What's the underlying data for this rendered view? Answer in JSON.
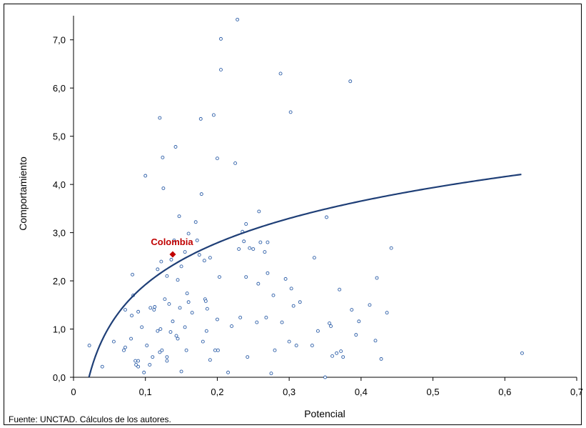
{
  "chart_data": {
    "type": "scatter",
    "title": "",
    "top_caption": "",
    "xlabel": "Potencial",
    "ylabel": "Comportamiento",
    "xlim": [
      0,
      0.7
    ],
    "ylim": [
      0,
      7.5
    ],
    "x_ticks": [
      "0",
      "0,1",
      "0,2",
      "0,3",
      "0,4",
      "0,5",
      "0,6",
      "0,7"
    ],
    "y_ticks": [
      "0,0",
      "1,0",
      "2,0",
      "3,0",
      "4,0",
      "5,0",
      "6,0",
      "7,0"
    ],
    "grid": false,
    "source": "Fuente: UNCTAD. Cálculos de los autores.",
    "highlight": {
      "label": "Colombia",
      "x": 0.138,
      "y": 2.55,
      "color": "#c00000"
    },
    "trend": {
      "type": "logarithmic",
      "a": 4.8,
      "b": 1.25,
      "x_range": [
        0.0215,
        0.623
      ],
      "color": "#1f3f77"
    },
    "series": [
      {
        "marker_color": "#2e5fa8",
        "points": [
          [
            0.022,
            0.66
          ],
          [
            0.04,
            0.22
          ],
          [
            0.056,
            0.74
          ],
          [
            0.07,
            0.56
          ],
          [
            0.072,
            0.62
          ],
          [
            0.072,
            1.4
          ],
          [
            0.08,
            0.8
          ],
          [
            0.081,
            1.28
          ],
          [
            0.082,
            2.13
          ],
          [
            0.083,
            1.7
          ],
          [
            0.086,
            0.34
          ],
          [
            0.087,
            0.26
          ],
          [
            0.09,
            0.22
          ],
          [
            0.09,
            0.34
          ],
          [
            0.09,
            1.36
          ],
          [
            0.095,
            1.04
          ],
          [
            0.098,
            0.1
          ],
          [
            0.1,
            4.18
          ],
          [
            0.102,
            0.66
          ],
          [
            0.106,
            0.26
          ],
          [
            0.107,
            1.44
          ],
          [
            0.11,
            0.42
          ],
          [
            0.112,
            1.4
          ],
          [
            0.113,
            1.46
          ],
          [
            0.117,
            0.96
          ],
          [
            0.117,
            2.24
          ],
          [
            0.12,
            5.38
          ],
          [
            0.12,
            0.52
          ],
          [
            0.121,
            1.0
          ],
          [
            0.122,
            2.4
          ],
          [
            0.123,
            0.56
          ],
          [
            0.124,
            4.56
          ],
          [
            0.125,
            3.92
          ],
          [
            0.127,
            1.62
          ],
          [
            0.13,
            0.42
          ],
          [
            0.13,
            0.34
          ],
          [
            0.13,
            2.1
          ],
          [
            0.133,
            1.52
          ],
          [
            0.135,
            0.94
          ],
          [
            0.136,
            2.44
          ],
          [
            0.138,
            1.16
          ],
          [
            0.14,
            2.84
          ],
          [
            0.142,
            4.78
          ],
          [
            0.143,
            0.86
          ],
          [
            0.145,
            2.02
          ],
          [
            0.145,
            0.8
          ],
          [
            0.147,
            3.34
          ],
          [
            0.148,
            1.44
          ],
          [
            0.15,
            2.3
          ],
          [
            0.15,
            0.12
          ],
          [
            0.155,
            1.04
          ],
          [
            0.155,
            2.6
          ],
          [
            0.157,
            0.56
          ],
          [
            0.158,
            1.74
          ],
          [
            0.16,
            2.98
          ],
          [
            0.16,
            1.56
          ],
          [
            0.165,
            1.34
          ],
          [
            0.17,
            3.22
          ],
          [
            0.172,
            2.84
          ],
          [
            0.175,
            2.54
          ],
          [
            0.177,
            5.36
          ],
          [
            0.178,
            3.8
          ],
          [
            0.18,
            0.74
          ],
          [
            0.182,
            2.42
          ],
          [
            0.183,
            1.62
          ],
          [
            0.184,
            1.58
          ],
          [
            0.185,
            0.96
          ],
          [
            0.186,
            1.42
          ],
          [
            0.19,
            2.48
          ],
          [
            0.19,
            0.36
          ],
          [
            0.195,
            5.44
          ],
          [
            0.197,
            0.56
          ],
          [
            0.2,
            4.54
          ],
          [
            0.201,
            0.56
          ],
          [
            0.203,
            2.08
          ],
          [
            0.205,
            6.38
          ],
          [
            0.205,
            7.02
          ],
          [
            0.2,
            1.2
          ],
          [
            0.215,
            0.1
          ],
          [
            0.22,
            1.06
          ],
          [
            0.225,
            4.44
          ],
          [
            0.228,
            7.42
          ],
          [
            0.23,
            2.66
          ],
          [
            0.232,
            1.24
          ],
          [
            0.235,
            3.02
          ],
          [
            0.237,
            2.82
          ],
          [
            0.24,
            3.18
          ],
          [
            0.24,
            2.08
          ],
          [
            0.242,
            0.42
          ],
          [
            0.245,
            2.68
          ],
          [
            0.25,
            2.66
          ],
          [
            0.255,
            1.14
          ],
          [
            0.257,
            1.94
          ],
          [
            0.258,
            3.44
          ],
          [
            0.26,
            2.8
          ],
          [
            0.266,
            2.6
          ],
          [
            0.268,
            1.24
          ],
          [
            0.27,
            2.16
          ],
          [
            0.27,
            2.8
          ],
          [
            0.275,
            0.08
          ],
          [
            0.278,
            1.7
          ],
          [
            0.28,
            0.56
          ],
          [
            0.288,
            6.3
          ],
          [
            0.29,
            1.14
          ],
          [
            0.295,
            2.04
          ],
          [
            0.3,
            0.74
          ],
          [
            0.302,
            5.5
          ],
          [
            0.303,
            1.84
          ],
          [
            0.306,
            1.48
          ],
          [
            0.31,
            0.66
          ],
          [
            0.315,
            1.56
          ],
          [
            0.332,
            0.66
          ],
          [
            0.335,
            2.48
          ],
          [
            0.34,
            0.96
          ],
          [
            0.35,
            0.0
          ],
          [
            0.352,
            3.32
          ],
          [
            0.356,
            1.12
          ],
          [
            0.358,
            1.06
          ],
          [
            0.36,
            0.44
          ],
          [
            0.366,
            0.5
          ],
          [
            0.37,
            1.82
          ],
          [
            0.372,
            0.54
          ],
          [
            0.375,
            0.42
          ],
          [
            0.385,
            6.14
          ],
          [
            0.387,
            1.4
          ],
          [
            0.393,
            0.88
          ],
          [
            0.397,
            1.16
          ],
          [
            0.412,
            1.5
          ],
          [
            0.422,
            2.06
          ],
          [
            0.42,
            0.76
          ],
          [
            0.428,
            0.38
          ],
          [
            0.436,
            1.34
          ],
          [
            0.442,
            2.68
          ],
          [
            0.624,
            0.5
          ]
        ]
      }
    ]
  }
}
